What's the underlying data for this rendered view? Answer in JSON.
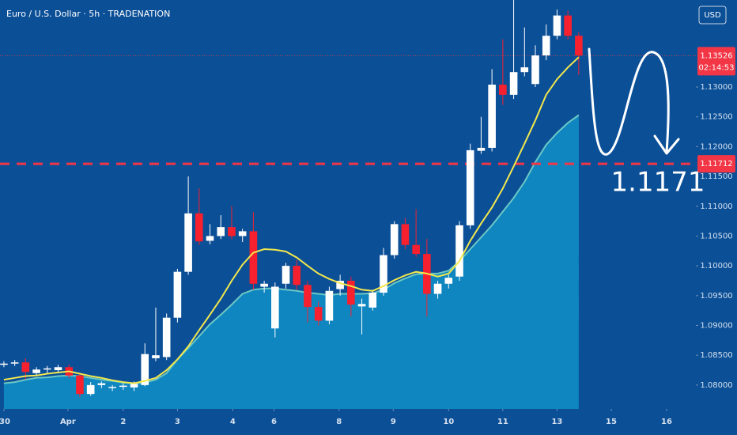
{
  "chart_data": {
    "type": "candlestick",
    "title": "Euro / U.S. Dollar · 5h · TRADENATION",
    "currency": "USD",
    "up_color": "#ffffff",
    "down_color": "#f7202e",
    "open": [
      1.0834,
      1.0836,
      1.0838,
      1.082,
      1.0826,
      1.0825,
      1.083,
      1.0816,
      1.0785,
      1.08,
      1.0795,
      1.0797,
      1.0796,
      1.08,
      1.0845,
      1.0847,
      1.0913,
      1.099,
      1.1088,
      1.1042,
      1.105,
      1.1065,
      1.105,
      1.1058,
      1.0965,
      1.0895,
      1.097,
      1.1,
      1.0968,
      1.0931,
      1.0908,
      1.0961,
      1.0975,
      1.0932,
      1.093,
      1.0955,
      1.1018,
      1.107,
      1.1035,
      1.102,
      1.0953,
      1.097,
      1.0982,
      1.1068,
      1.1193,
      1.1198,
      1.1304,
      1.1287,
      1.1325,
      1.1305,
      1.1353,
      1.1386,
      1.142,
      1.1386
    ],
    "high": [
      1.084,
      1.0842,
      1.0845,
      1.083,
      1.0832,
      1.0834,
      1.0835,
      1.082,
      1.0805,
      1.0806,
      1.08,
      1.0803,
      1.0806,
      1.087,
      1.093,
      1.092,
      1.0995,
      1.115,
      1.113,
      1.107,
      1.1085,
      1.11,
      1.1062,
      1.109,
      1.0975,
      1.0972,
      1.1005,
      1.101,
      1.0975,
      1.094,
      1.0965,
      1.0985,
      1.0982,
      1.0945,
      1.096,
      1.103,
      1.1075,
      1.108,
      1.1095,
      1.1045,
      1.0975,
      1.0985,
      1.1075,
      1.1205,
      1.125,
      1.133,
      1.138,
      1.1446,
      1.14,
      1.137,
      1.1405,
      1.143,
      1.1428,
      1.1392
    ],
    "low": [
      1.083,
      1.0832,
      1.081,
      1.0815,
      1.082,
      1.082,
      1.0812,
      1.078,
      1.0782,
      1.0795,
      1.079,
      1.0792,
      1.079,
      1.0798,
      1.084,
      1.0842,
      1.0905,
      1.0985,
      1.1035,
      1.1036,
      1.1045,
      1.1045,
      1.104,
      1.096,
      1.0955,
      1.088,
      1.0962,
      1.096,
      1.0905,
      1.09,
      1.0902,
      1.095,
      1.0915,
      1.0885,
      1.0925,
      1.095,
      1.1012,
      1.1028,
      1.1015,
      1.0915,
      1.0945,
      1.0962,
      1.0975,
      1.1062,
      1.1188,
      1.1192,
      1.127,
      1.128,
      1.1318,
      1.13,
      1.1345,
      1.138,
      1.138,
      1.132
    ],
    "close": [
      1.0836,
      1.0838,
      1.0822,
      1.0826,
      1.0828,
      1.083,
      1.0816,
      1.0785,
      1.08,
      1.0803,
      1.0797,
      1.0799,
      1.0802,
      1.0852,
      1.085,
      1.0913,
      1.099,
      1.1088,
      1.1041,
      1.105,
      1.1065,
      1.105,
      1.1058,
      1.097,
      1.097,
      1.0965,
      1.1,
      1.0968,
      1.0931,
      1.0908,
      1.0958,
      1.0975,
      1.0935,
      1.0936,
      1.0955,
      1.1018,
      1.107,
      1.1035,
      1.102,
      1.0953,
      1.097,
      1.098,
      1.1068,
      1.1194,
      1.1198,
      1.1304,
      1.1287,
      1.1325,
      1.1333,
      1.1353,
      1.1386,
      1.142,
      1.1386,
      1.1353
    ],
    "overlays": [
      {
        "type": "area",
        "color": "#0f86c0",
        "edge_color": "#6cc8c4",
        "values": [
          1.0803,
          1.0805,
          1.0809,
          1.0812,
          1.0813,
          1.0815,
          1.0816,
          1.0815,
          1.0812,
          1.0809,
          1.0807,
          1.0804,
          1.0803,
          1.0804,
          1.0809,
          1.082,
          1.0843,
          1.0862,
          1.0882,
          1.0902,
          1.0918,
          1.0935,
          1.0953,
          1.096,
          1.0962,
          1.0962,
          1.096,
          1.0958,
          1.0955,
          1.0953,
          1.0951,
          1.0953,
          1.0953,
          1.0953,
          1.0954,
          1.096,
          1.0971,
          1.0979,
          1.0986,
          1.0987,
          1.0987,
          1.0992,
          1.1008,
          1.1028,
          1.1048,
          1.1068,
          1.1091,
          1.1114,
          1.1141,
          1.1174,
          1.1203,
          1.1223,
          1.124,
          1.1253
        ]
      },
      {
        "type": "line",
        "color": "#f3e84c",
        "values": [
          1.0809,
          1.0812,
          1.0815,
          1.0816,
          1.0819,
          1.0821,
          1.0823,
          1.0819,
          1.0815,
          1.0812,
          1.0808,
          1.0805,
          1.0803,
          1.0807,
          1.0812,
          1.0825,
          1.0843,
          1.0865,
          1.0892,
          1.0918,
          1.0945,
          1.0975,
          1.1002,
          1.1022,
          1.1028,
          1.1027,
          1.1024,
          1.1014,
          1.1,
          1.0987,
          1.0978,
          1.0971,
          1.0966,
          1.096,
          1.0958,
          1.0966,
          1.0976,
          1.0984,
          1.099,
          1.0987,
          1.0982,
          1.0987,
          1.1008,
          1.1042,
          1.1071,
          1.1098,
          1.113,
          1.1167,
          1.1205,
          1.1244,
          1.1287,
          1.1313,
          1.1333,
          1.135
        ]
      }
    ],
    "xlim": [
      -0.36,
      63.8
    ],
    "xticks": [
      {
        "value": 0,
        "label": "30"
      },
      {
        "value": 5.9,
        "label": "Apr"
      },
      {
        "value": 11.0,
        "label": "2"
      },
      {
        "value": 16.0,
        "label": "3"
      },
      {
        "value": 21.1,
        "label": "4"
      },
      {
        "value": 24.9,
        "label": "6"
      },
      {
        "value": 30.9,
        "label": "8"
      },
      {
        "value": 35.9,
        "label": "9"
      },
      {
        "value": 41.0,
        "label": "10"
      },
      {
        "value": 46.0,
        "label": "11"
      },
      {
        "value": 51.0,
        "label": "13"
      },
      {
        "value": 56.0,
        "label": "15"
      },
      {
        "value": 61.1,
        "label": "16"
      }
    ],
    "ylim": [
      1.076,
      1.1446
    ],
    "yticks": [
      {
        "value": 1.08,
        "label": "1.08000"
      },
      {
        "value": 1.085,
        "label": "1.08500"
      },
      {
        "value": 1.09,
        "label": "1.09000"
      },
      {
        "value": 1.095,
        "label": "1.09500"
      },
      {
        "value": 1.1,
        "label": "1.10000"
      },
      {
        "value": 1.105,
        "label": "1.10500"
      },
      {
        "value": 1.11,
        "label": "1.11000"
      },
      {
        "value": 1.115,
        "label": "1.11500"
      },
      {
        "value": 1.12,
        "label": "1.12000"
      },
      {
        "value": 1.125,
        "label": "1.12500"
      },
      {
        "value": 1.13,
        "label": "1.13000"
      }
    ],
    "grid": false,
    "current_price": 1.13526,
    "countdown": "02:14:53",
    "level": 1.11712,
    "level_color": "#f23645",
    "annotation": "1.1171"
  }
}
